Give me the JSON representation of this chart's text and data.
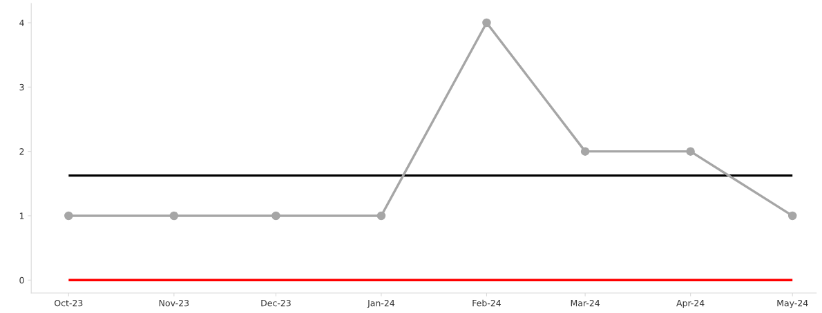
{
  "chart_data": {
    "type": "line",
    "x": [
      "2023-10",
      "2023-11",
      "2023-12",
      "2024-01",
      "2024-02",
      "2024-03",
      "2024-04",
      "2024-05"
    ],
    "series": [
      {
        "color": "#a6a6a6",
        "values": [
          1,
          1,
          1,
          1,
          4,
          2,
          2,
          1
        ]
      }
    ],
    "marker": "circle",
    "line_style": "solid",
    "ref_lines": [
      {
        "axis": "y",
        "value": 1.625,
        "color": "#000000"
      },
      {
        "axis": "y",
        "value": 0,
        "color": "#ff0000"
      }
    ],
    "xlim": [
      "2023-09-20",
      "2024-05-08"
    ],
    "xticks": [
      {
        "value": "2023-10",
        "label": "Oct-23"
      },
      {
        "value": "2023-11",
        "label": "Nov-23"
      },
      {
        "value": "2023-12",
        "label": "Dec-23"
      },
      {
        "value": "2024-01",
        "label": "Jan-24"
      },
      {
        "value": "2024-02",
        "label": "Feb-24"
      },
      {
        "value": "2024-03",
        "label": "Mar-24"
      },
      {
        "value": "2024-04",
        "label": "Apr-24"
      },
      {
        "value": "2024-05",
        "label": "May-24"
      }
    ],
    "ylim": [
      -0.2,
      4.3
    ],
    "yticks": [
      0,
      1,
      2,
      3,
      4
    ],
    "grid": false,
    "legend": false
  }
}
